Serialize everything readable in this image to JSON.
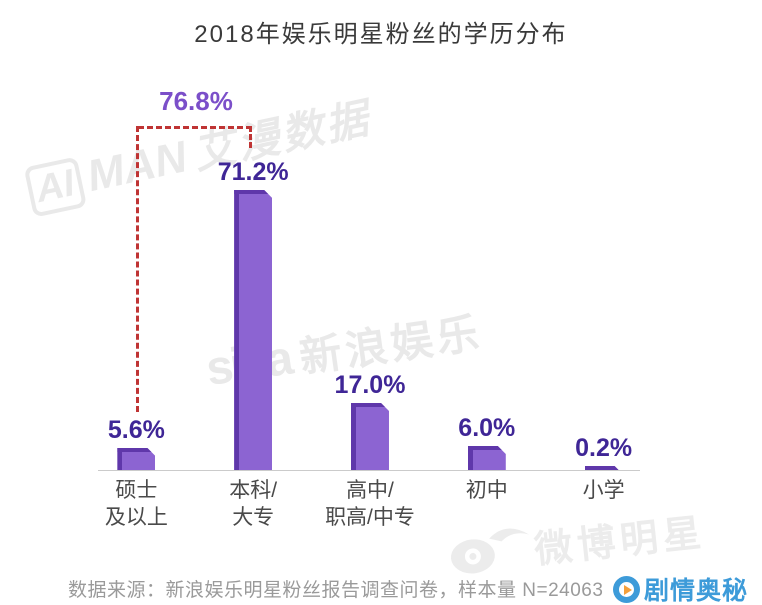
{
  "title": "2018年娱乐明星粉丝的学历分布",
  "chart_data": {
    "type": "bar",
    "title": "2018年娱乐明星粉丝的学历分布",
    "categories": [
      "硕士\n及以上",
      "本科/\n大专",
      "高中/\n职高/中专",
      "初中",
      "小学"
    ],
    "values": [
      5.6,
      71.2,
      17.0,
      6.0,
      0.2
    ],
    "value_labels": [
      "5.6%",
      "71.2%",
      "17.0%",
      "6.0%",
      "0.2%"
    ],
    "value_suffix": "%",
    "annotation_label": "76.8%",
    "grid": false,
    "legend": false,
    "colors": {
      "bar_fill": "#8c64d2",
      "bar_edge": "#5f37aa",
      "value_label": "#3f2696",
      "annotation": "#7b4fc9",
      "dashed_bracket": "#bf3434",
      "axis_line": "#cbcbcb"
    }
  },
  "footer": {
    "source_text": "数据来源：新浪娱乐明星粉丝报告调查问卷，样本量 N=24063"
  },
  "watermarks": {
    "aiman": {
      "box_text": "AI",
      "latin": "MAN",
      "cn": "艾漫数据"
    },
    "sina": {
      "latin": "sina",
      "cn": "新浪娱乐"
    },
    "weibo": {
      "cn": "微博明星"
    },
    "juqing": {
      "cn": "剧情奥秘"
    }
  }
}
